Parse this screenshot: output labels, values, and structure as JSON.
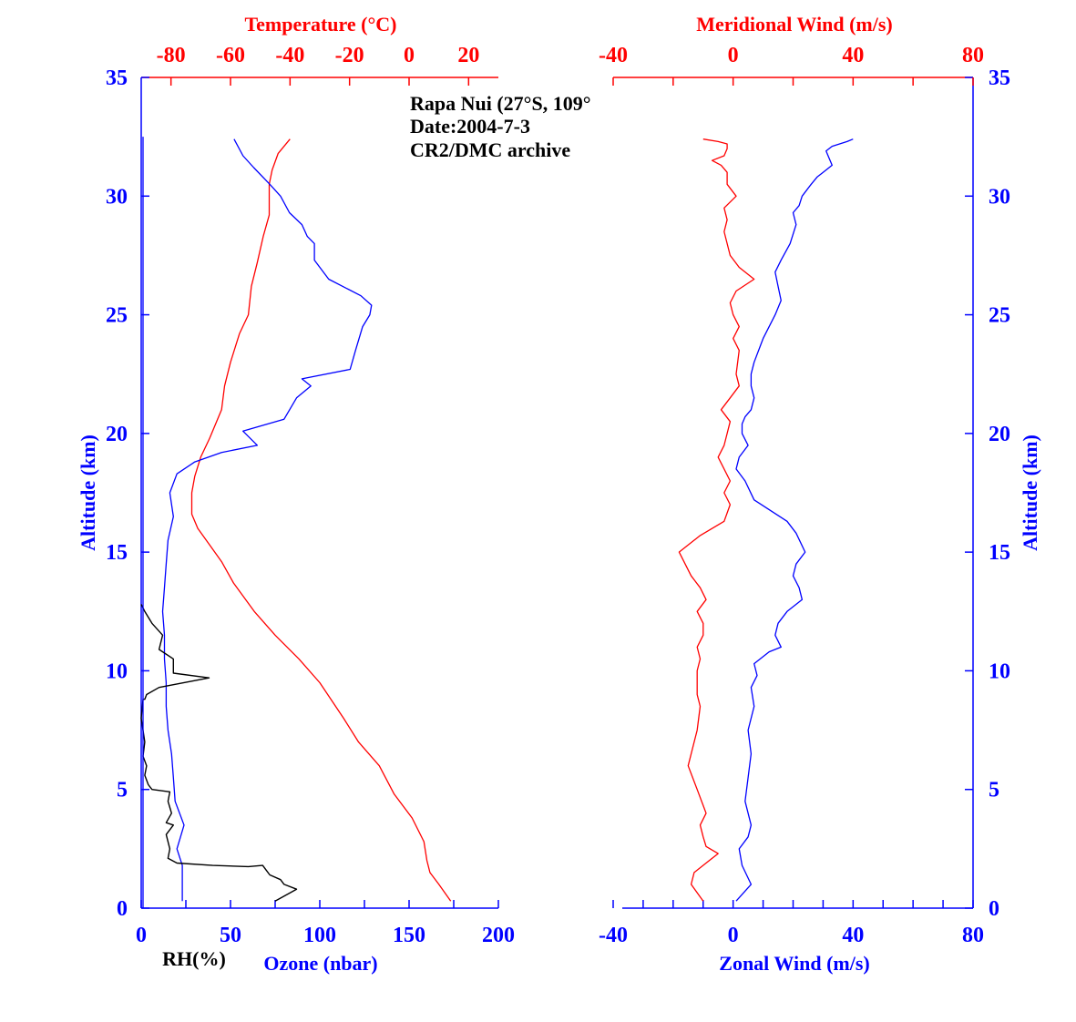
{
  "chart_data": [
    {
      "type": "line",
      "panel": "left",
      "annotation": [
        "Rapa Nui (27°S, 109°",
        "Date:2004-7-3",
        "CR2/DMC archive"
      ],
      "y_axis": {
        "label": "Altitude (km)",
        "range": [
          0,
          35
        ],
        "ticks": [
          "0",
          "5",
          "10",
          "15",
          "20",
          "25",
          "30",
          "35"
        ]
      },
      "x_axis_bottom": {
        "label": "Ozone (nbar)",
        "secondary_label": "RH(%)",
        "range": [
          0,
          200
        ],
        "ticks": [
          "0",
          "50",
          "100",
          "150",
          "200"
        ]
      },
      "x_axis_top": {
        "label": "Temperature (°C)",
        "range": [
          -90,
          30
        ],
        "ticks": [
          "-80",
          "-60",
          "-40",
          "-20",
          "0",
          "20"
        ]
      },
      "series": [
        {
          "color": "#ff0000",
          "axis": "top",
          "x": [
            14,
            10,
            7,
            6,
            5,
            1,
            -5,
            -10,
            -17,
            -22,
            -30,
            -37,
            -45,
            -52,
            -59,
            -63,
            -67,
            -71,
            -73,
            -73,
            -72,
            -70,
            -67,
            -63,
            -62,
            -60,
            -57,
            -54,
            -53,
            -51,
            -49,
            -47,
            -47,
            -46,
            -44,
            -40
          ],
          "y": [
            0.3,
            1.0,
            1.5,
            2.0,
            2.8,
            3.8,
            4.8,
            6.0,
            7.0,
            8.0,
            9.5,
            10.5,
            11.5,
            12.5,
            13.7,
            14.6,
            15.3,
            16.0,
            16.6,
            17.5,
            18.2,
            19.0,
            19.8,
            21.0,
            22.0,
            23.0,
            24.2,
            25.0,
            26.2,
            27.2,
            28.3,
            29.2,
            30.5,
            31.1,
            31.8,
            32.4
          ]
        },
        {
          "color": "#0000ff",
          "axis": "bottom",
          "x": [
            23,
            23,
            23,
            20,
            24,
            19,
            18,
            17,
            15,
            14,
            14,
            13,
            13,
            12,
            13,
            14,
            15,
            18,
            16,
            20,
            30,
            45,
            65,
            57,
            80,
            87,
            95,
            90,
            117,
            120,
            124,
            128,
            129,
            123,
            105,
            97,
            97,
            93,
            90,
            83,
            78,
            72,
            63,
            57,
            52
          ],
          "y": [
            0.3,
            1.0,
            1.8,
            2.5,
            3.5,
            4.5,
            5.5,
            6.5,
            7.5,
            8.5,
            9.5,
            10.5,
            11.5,
            12.5,
            13.5,
            14.5,
            15.5,
            16.5,
            17.5,
            18.3,
            18.8,
            19.2,
            19.5,
            20.1,
            20.6,
            21.5,
            22.0,
            22.3,
            22.7,
            23.5,
            24.5,
            25.0,
            25.4,
            25.8,
            26.5,
            27.3,
            28.0,
            28.3,
            28.8,
            29.3,
            30.0,
            30.5,
            31.2,
            31.7,
            32.4
          ]
        },
        {
          "color": "#000000",
          "axis": "bottom",
          "x": [
            75,
            87,
            80,
            78,
            72,
            70,
            68,
            60,
            40,
            20,
            15,
            16,
            14,
            18,
            14,
            17,
            15,
            16,
            6,
            4,
            2,
            3,
            1,
            2,
            0,
            1,
            2,
            3,
            10,
            38,
            18,
            18,
            10,
            12,
            6,
            2,
            0
          ],
          "y": [
            0.3,
            0.8,
            1.0,
            1.2,
            1.4,
            1.6,
            1.8,
            1.75,
            1.8,
            1.9,
            2.1,
            2.5,
            3.1,
            3.5,
            3.6,
            4.0,
            4.5,
            4.9,
            5.0,
            5.2,
            5.6,
            6.0,
            6.4,
            7.0,
            8.0,
            8.8,
            8.8,
            9.0,
            9.3,
            9.7,
            9.9,
            10.5,
            10.9,
            11.5,
            12.0,
            12.5,
            12.8
          ]
        },
        {
          "color": "#0000ff",
          "axis": "bottom",
          "x": [
            1,
            1
          ],
          "y": [
            0,
            32.5
          ]
        }
      ]
    },
    {
      "type": "line",
      "panel": "right",
      "y_axis": {
        "label": "Altitude (km)",
        "range": [
          0,
          35
        ],
        "ticks": [
          "0",
          "5",
          "10",
          "15",
          "20",
          "25",
          "30",
          "35"
        ]
      },
      "x_axis_bottom": {
        "label": "Zonal Wind (m/s)",
        "range": [
          -40,
          80
        ],
        "ticks": [
          "-40",
          "0",
          "40",
          "80"
        ]
      },
      "x_axis_top": {
        "label": "Meridional Wind (m/s)",
        "range": [
          -40,
          80
        ],
        "ticks": [
          "-40",
          "0",
          "40",
          "80"
        ]
      },
      "series": [
        {
          "color": "#ff0000",
          "axis": "top",
          "x": [
            -10,
            -14,
            -13,
            -8,
            -5,
            -9,
            -10,
            -11,
            -9,
            -12,
            -15,
            -14,
            -12,
            -11,
            -12,
            -12,
            -11,
            -12,
            -10,
            -10,
            -12,
            -9,
            -11,
            -14,
            -18,
            -11,
            -3,
            -1,
            -3,
            -1,
            -5,
            -3,
            -2,
            -1,
            -4,
            -1,
            2,
            1,
            2,
            0,
            2,
            0,
            -1,
            1,
            7,
            2,
            -1,
            -2,
            -3,
            -2,
            -3,
            1,
            -2,
            -2,
            -4,
            -7,
            -3,
            -2,
            -2,
            -5,
            -10
          ],
          "y": [
            0.3,
            1.0,
            1.5,
            2.0,
            2.3,
            2.6,
            3.0,
            3.5,
            4.0,
            5.0,
            6.0,
            6.5,
            7.5,
            8.5,
            9.0,
            10.0,
            10.5,
            11.0,
            11.5,
            12.0,
            12.5,
            13.0,
            13.5,
            14.0,
            15.0,
            15.7,
            16.3,
            17.0,
            17.5,
            18.0,
            19.0,
            19.5,
            20.0,
            20.5,
            21.0,
            21.5,
            22.0,
            22.5,
            23.5,
            24.0,
            24.5,
            25.0,
            25.5,
            26.0,
            26.5,
            27.0,
            27.5,
            28.0,
            28.5,
            29.0,
            29.5,
            30.0,
            30.5,
            31.0,
            31.3,
            31.5,
            31.7,
            32.0,
            32.2,
            32.3,
            32.4
          ]
        },
        {
          "color": "#0000ff",
          "axis": "bottom",
          "x": [
            1,
            6,
            3,
            2,
            5,
            6,
            4,
            5,
            6,
            5,
            7,
            6,
            8,
            7,
            12,
            16,
            14,
            15,
            18,
            23,
            22,
            20,
            21,
            24,
            21,
            18,
            7,
            4,
            1,
            2,
            5,
            3,
            3,
            4,
            6,
            7,
            6,
            6,
            7,
            10,
            14,
            16,
            15,
            14,
            16,
            19,
            21,
            20,
            22,
            23,
            26,
            28,
            30,
            33,
            32,
            31,
            33,
            38,
            40
          ],
          "y": [
            0.3,
            1.0,
            1.8,
            2.5,
            3.0,
            3.5,
            4.5,
            5.5,
            6.5,
            7.5,
            8.5,
            9.3,
            9.8,
            10.3,
            10.8,
            11.0,
            11.5,
            12.0,
            12.5,
            13.0,
            13.5,
            14.0,
            14.5,
            15.0,
            15.8,
            16.3,
            17.2,
            18.0,
            18.5,
            19.0,
            19.5,
            20.0,
            20.4,
            20.7,
            21.0,
            21.5,
            22.0,
            22.5,
            23.0,
            24.0,
            25.0,
            25.6,
            26.2,
            26.8,
            27.3,
            28.0,
            28.8,
            29.3,
            29.6,
            30.0,
            30.5,
            30.8,
            31.0,
            31.3,
            31.6,
            31.9,
            32.1,
            32.3,
            32.4
          ]
        }
      ]
    }
  ]
}
